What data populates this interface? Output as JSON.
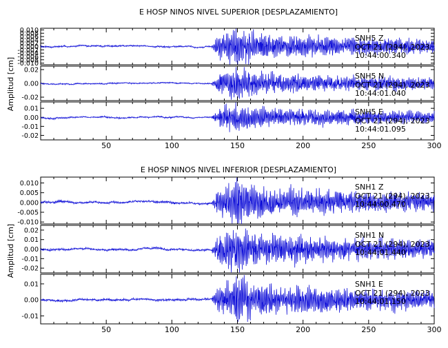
{
  "colors": {
    "trace": "#1010d8",
    "axes": "#000000",
    "background": "#ffffff"
  },
  "chart_data": [
    {
      "type": "line",
      "title": "E HOSP NINOS NIVEL SUPERIOR [DESPLAZAMIENTO]",
      "ylabel": "Amplitud [cm]",
      "xlim": [
        0,
        300
      ],
      "xticks": [
        50,
        100,
        150,
        200,
        250,
        300
      ],
      "panels": [
        {
          "channel": "SNH5",
          "component": "Z",
          "date": "OCT 21 (294), 2023",
          "time": "10:44:00.340",
          "yticks": [
            "0.010",
            "0.008",
            "0.006",
            "0.004",
            "0.002",
            "0.000",
            "-0.002",
            "-0.004",
            "-0.006",
            "-0.008",
            "-0.010"
          ],
          "ylim": [
            -0.011,
            0.011
          ],
          "peak": 0.011,
          "noise": 0.0004,
          "seed": 11
        },
        {
          "channel": "SNH5",
          "component": "N",
          "date": "OCT 21 (294), 2023",
          "time": "10:44:01.040",
          "yticks": [
            "0.02",
            "0.00",
            "-0.02"
          ],
          "ylim": [
            -0.025,
            0.025
          ],
          "peak": 0.022,
          "noise": 0.0008,
          "seed": 23
        },
        {
          "channel": "SNH5",
          "component": "E",
          "date": "OCT 21 (294), 2023",
          "time": "10:44:01.095",
          "yticks": [
            "0.01",
            "0.00",
            "-0.01",
            "-0.02"
          ],
          "ylim": [
            -0.025,
            0.017
          ],
          "peak": 0.016,
          "noise": 0.0007,
          "seed": 37
        }
      ]
    },
    {
      "type": "line",
      "title": "E HOSP NINOS NIVEL INFERIOR [DESPLAZAMIENTO]",
      "ylabel": "Amplitud [cm]",
      "xlim": [
        0,
        300
      ],
      "xticks": [
        50,
        100,
        150,
        200,
        250,
        300
      ],
      "panels": [
        {
          "channel": "SNH1",
          "component": "Z",
          "date": "OCT 21 (294), 2023",
          "time": "10:44:00.470",
          "yticks": [
            "0.010",
            "0.005",
            "0.000",
            "-0.005",
            "-0.010"
          ],
          "ylim": [
            -0.011,
            0.013
          ],
          "peak": 0.011,
          "noise": 0.0005,
          "seed": 51
        },
        {
          "channel": "SNH1",
          "component": "N",
          "date": "OCT 21 (294), 2023",
          "time": "10:44:01.440",
          "yticks": [
            "0.02",
            "0.01",
            "0.00",
            "-0.01",
            "-0.02"
          ],
          "ylim": [
            -0.025,
            0.025
          ],
          "peak": 0.023,
          "noise": 0.0009,
          "seed": 67
        },
        {
          "channel": "SNH1",
          "component": "E",
          "date": "OCT 21 (294), 2023",
          "time": "10:44:01.150",
          "yticks": [
            "0.01",
            "0.00",
            "-0.01"
          ],
          "ylim": [
            -0.015,
            0.016
          ],
          "peak": 0.014,
          "noise": 0.0006,
          "seed": 79
        }
      ]
    }
  ]
}
